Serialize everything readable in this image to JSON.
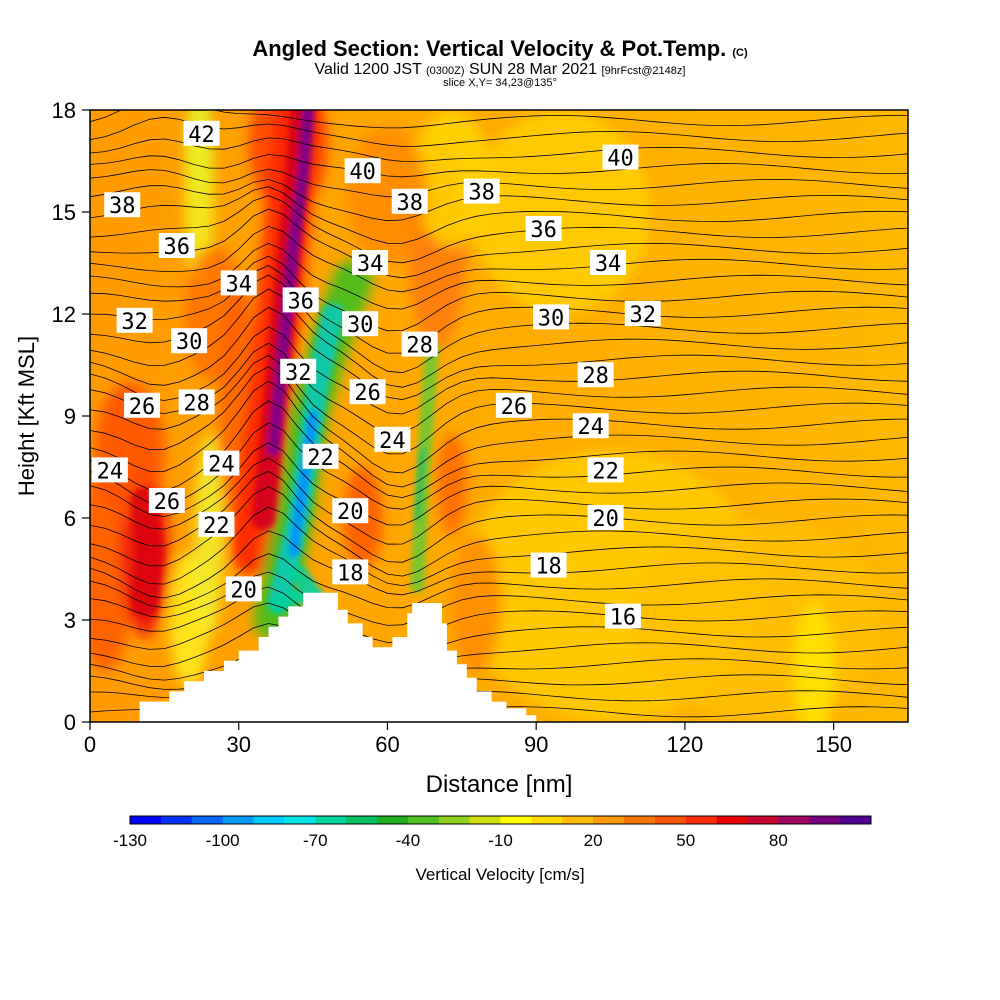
{
  "header": {
    "title": "Angled Section: Vertical Velocity & Pot.Temp.",
    "title_units": "(C)",
    "valid_prefix": "Valid 1200 JST",
    "valid_utc": "(0300Z)",
    "valid_date": "SUN 28 Mar 2021",
    "forecast": "[9hrFcst@2148z]",
    "slice": "slice X,Y= 34,23@135°"
  },
  "chart_data": {
    "type": "heatmap",
    "xlabel": "Distance [nm]",
    "ylabel": "Height [Kft MSL]",
    "xlim": [
      0,
      165
    ],
    "ylim": [
      0,
      18
    ],
    "x_ticks": [
      0,
      30,
      60,
      90,
      120,
      150
    ],
    "y_ticks": [
      0,
      3,
      6,
      9,
      12,
      15,
      18
    ],
    "shaded_field": "Vertical Velocity",
    "contour_field": "Potential Temperature (C)",
    "colorbar": {
      "label": "Vertical Velocity [cm/s]",
      "tick_labels": [
        "-130",
        "-100",
        "-70",
        "-40",
        "-10",
        "20",
        "50",
        "80"
      ],
      "colors": [
        "#0000ff",
        "#0033ff",
        "#0066ff",
        "#0099ff",
        "#00ccff",
        "#00e6e6",
        "#00d4a0",
        "#00c060",
        "#20b020",
        "#50c020",
        "#90d020",
        "#d0e010",
        "#ffff00",
        "#ffdd00",
        "#ffbb00",
        "#ff9900",
        "#ff7700",
        "#ff5500",
        "#ff2d00",
        "#e80000",
        "#c80030",
        "#a00060",
        "#780080",
        "#500090"
      ]
    },
    "terrain_profile": {
      "x": [
        0,
        10,
        16,
        19,
        23,
        27,
        30,
        34,
        36,
        38,
        40,
        43,
        46,
        48,
        50,
        52,
        55,
        57,
        59,
        61,
        62,
        64,
        65,
        67,
        70,
        71,
        72,
        74,
        76,
        78,
        81,
        84,
        88,
        90,
        165
      ],
      "y": [
        0,
        0.6,
        0.9,
        1.2,
        1.5,
        1.8,
        2.1,
        2.5,
        2.8,
        3.1,
        3.4,
        3.8,
        3.8,
        3.8,
        3.3,
        2.9,
        2.5,
        2.2,
        2.2,
        2.5,
        2.5,
        3.2,
        3.5,
        3.5,
        3.5,
        2.9,
        2.1,
        1.7,
        1.3,
        0.9,
        0.6,
        0.4,
        0.2,
        0.0,
        0.0
      ]
    },
    "contour_labels": [
      {
        "text": "42",
        "x": 22.5,
        "y": 17.3
      },
      {
        "text": "40",
        "x": 55,
        "y": 16.2
      },
      {
        "text": "40",
        "x": 107,
        "y": 16.6
      },
      {
        "text": "38",
        "x": 6.5,
        "y": 15.2
      },
      {
        "text": "38",
        "x": 64.5,
        "y": 15.3
      },
      {
        "text": "38",
        "x": 79,
        "y": 15.6
      },
      {
        "text": "36",
        "x": 17.5,
        "y": 14.0
      },
      {
        "text": "36",
        "x": 42.5,
        "y": 12.4
      },
      {
        "text": "36",
        "x": 91.5,
        "y": 14.5
      },
      {
        "text": "34",
        "x": 30,
        "y": 12.9
      },
      {
        "text": "34",
        "x": 56.5,
        "y": 13.5
      },
      {
        "text": "34",
        "x": 104.5,
        "y": 13.5
      },
      {
        "text": "32",
        "x": 9,
        "y": 11.8
      },
      {
        "text": "32",
        "x": 42,
        "y": 10.3
      },
      {
        "text": "32",
        "x": 111.5,
        "y": 12.0
      },
      {
        "text": "30",
        "x": 20,
        "y": 11.2
      },
      {
        "text": "30",
        "x": 54.5,
        "y": 11.7
      },
      {
        "text": "30",
        "x": 93,
        "y": 11.9
      },
      {
        "text": "28",
        "x": 21.5,
        "y": 9.4
      },
      {
        "text": "28",
        "x": 66.5,
        "y": 11.1
      },
      {
        "text": "28",
        "x": 102,
        "y": 10.2
      },
      {
        "text": "26",
        "x": 10.5,
        "y": 9.3
      },
      {
        "text": "26",
        "x": 56,
        "y": 9.7
      },
      {
        "text": "26",
        "x": 85.5,
        "y": 9.3
      },
      {
        "text": "26",
        "x": 15.5,
        "y": 6.5
      },
      {
        "text": "24",
        "x": 4,
        "y": 7.4
      },
      {
        "text": "24",
        "x": 26.5,
        "y": 7.6
      },
      {
        "text": "24",
        "x": 61,
        "y": 8.3
      },
      {
        "text": "24",
        "x": 101,
        "y": 8.7
      },
      {
        "text": "22",
        "x": 46.5,
        "y": 7.8
      },
      {
        "text": "22",
        "x": 25.5,
        "y": 5.8
      },
      {
        "text": "22",
        "x": 104,
        "y": 7.4
      },
      {
        "text": "20",
        "x": 52.5,
        "y": 6.2
      },
      {
        "text": "20",
        "x": 31,
        "y": 3.9
      },
      {
        "text": "20",
        "x": 104,
        "y": 6.0
      },
      {
        "text": "18",
        "x": 52.5,
        "y": 4.4
      },
      {
        "text": "18",
        "x": 92.5,
        "y": 4.6
      },
      {
        "text": "16",
        "x": 107.5,
        "y": 3.1
      }
    ]
  }
}
